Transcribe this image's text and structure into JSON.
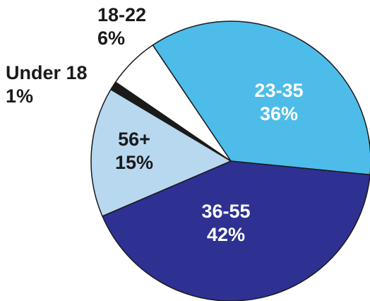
{
  "chart_data": {
    "type": "pie",
    "title": "",
    "slices": [
      {
        "label": "23-35",
        "value": 36,
        "value_label": "36%",
        "color": "#4dbce9",
        "text_color": "#ffffff"
      },
      {
        "label": "36-55",
        "value": 42,
        "value_label": "42%",
        "color": "#2e3192",
        "text_color": "#ffffff"
      },
      {
        "label": "56+",
        "value": 15,
        "value_label": "15%",
        "color": "#b8d8f0",
        "text_color": "#1a1a1a"
      },
      {
        "label": "Under 18",
        "value": 1,
        "value_label": "1%",
        "color": "#1a1a1a",
        "text_color": "#1a1a1a"
      },
      {
        "label": "18-22",
        "value": 6,
        "value_label": "6%",
        "color": "#ffffff",
        "text_color": "#1a1a1a"
      }
    ],
    "start_angle_deg": -34,
    "direction": "clockwise",
    "slice_outline": "#1a1a1a",
    "legend": "none",
    "label_style": "category and percentage, two lines; on-slice for large slices, outside for small slices"
  }
}
